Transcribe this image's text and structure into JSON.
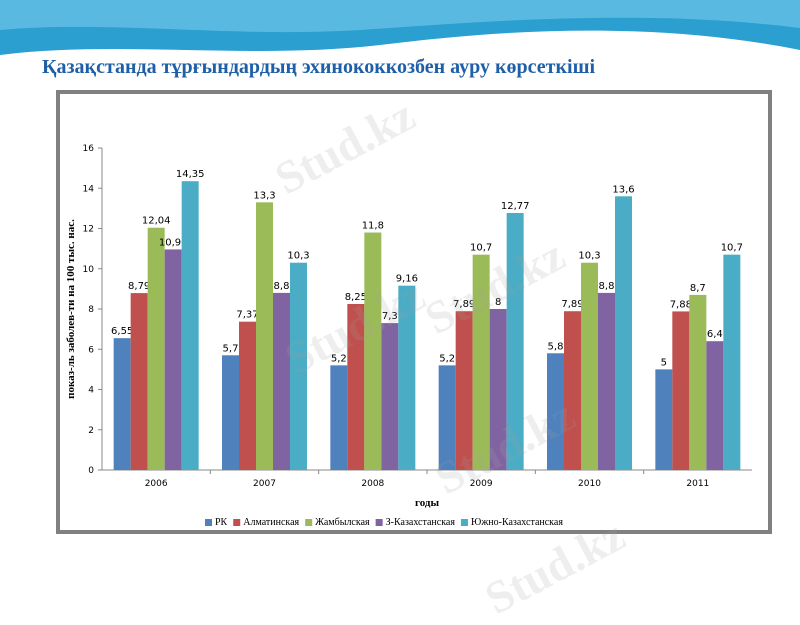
{
  "slide": {
    "title": "Қазақстанда тұрғындардың эхинококкозбен ауру көрсеткіші",
    "watermark": "Stud.kz"
  },
  "colors": {
    "header_wave": "#2a9fd0",
    "title": "#1f5fa8",
    "frame": "#808080"
  },
  "chart_data": {
    "type": "bar",
    "title": "",
    "xlabel": "годы",
    "ylabel": "показ-ль заболев-ти на 100 тыс. нас.",
    "ylim": [
      0,
      16
    ],
    "yticks": [
      0,
      2,
      4,
      6,
      8,
      10,
      12,
      14,
      16
    ],
    "categories": [
      "2006",
      "2007",
      "2008",
      "2009",
      "2010",
      "2011"
    ],
    "grid": false,
    "legend_position": "bottom",
    "series": [
      {
        "name": "РК",
        "color": "#4f81bd",
        "values": [
          6.55,
          5.7,
          5.2,
          5.2,
          5.8,
          5
        ],
        "labels": [
          "6,55",
          "5,7",
          "5,2",
          "5,2",
          "5,8",
          "5"
        ]
      },
      {
        "name": "Алматинская",
        "color": "#c0504d",
        "values": [
          8.79,
          7.37,
          8.25,
          7.89,
          7.89,
          7.88
        ],
        "labels": [
          "8,79",
          "7,37",
          "8,25",
          "7,89",
          "7,89",
          "7,88"
        ]
      },
      {
        "name": "Жамбылская",
        "color": "#9bbb59",
        "values": [
          12.04,
          13.3,
          11.8,
          10.7,
          10.3,
          8.7
        ],
        "labels": [
          "12,04",
          "13,3",
          "11,8",
          "10,7",
          "10,3",
          "8,7"
        ]
      },
      {
        "name": "З-Казахстанская",
        "color": "#8064a2",
        "values": [
          10.96,
          8.8,
          7.3,
          8,
          8.8,
          6.4
        ],
        "labels": [
          "10,96",
          "8,8",
          "7,3",
          "8",
          "8,8",
          "6,4"
        ]
      },
      {
        "name": "Южно-Казахстанская",
        "color": "#4bacc6",
        "values": [
          14.35,
          10.3,
          9.16,
          12.77,
          13.6,
          10.7
        ],
        "labels": [
          "14,35",
          "10,3",
          "9,16",
          "12,77",
          "13,6",
          "10,7"
        ]
      }
    ]
  }
}
